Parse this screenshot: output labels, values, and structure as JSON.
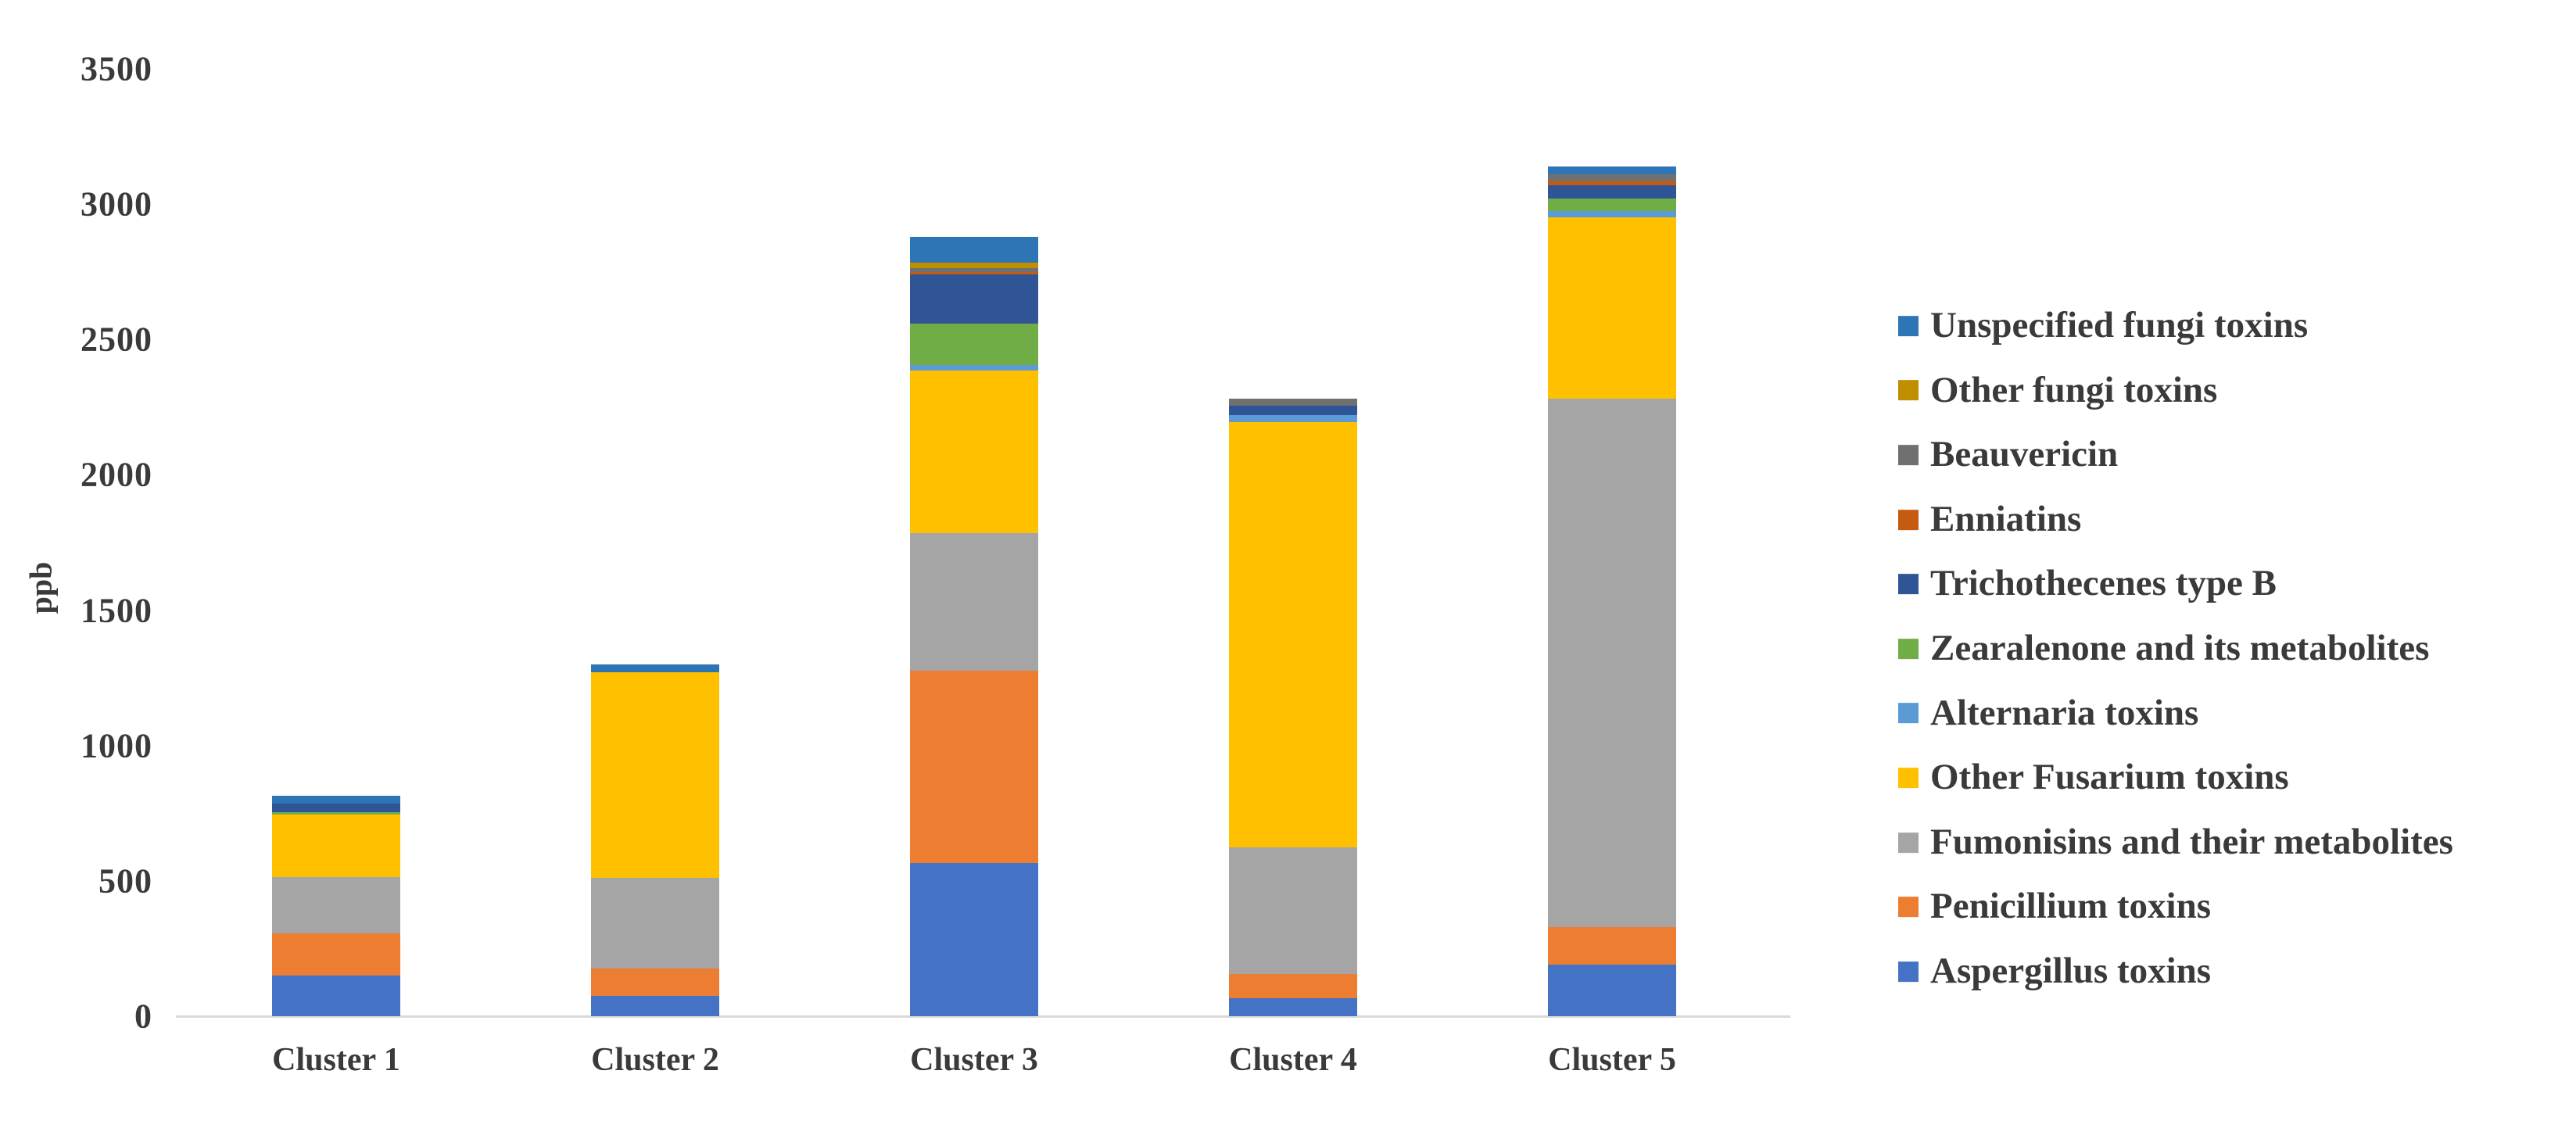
{
  "chart_data": {
    "type": "bar",
    "stacked": true,
    "title": "",
    "xlabel": "",
    "ylabel": "ppb",
    "ylim": [
      0,
      3500
    ],
    "yticks": [
      0,
      500,
      1000,
      1500,
      2000,
      2500,
      3000,
      3500
    ],
    "grid": "off",
    "legend_position": "right",
    "categories": [
      "Cluster 1",
      "Cluster 2",
      "Cluster 3",
      "Cluster 4",
      "Cluster 5"
    ],
    "series": [
      {
        "name": "Aspergillus toxins",
        "color": "#4472C4",
        "values": [
          150,
          75,
          565,
          65,
          190
        ]
      },
      {
        "name": "Penicillium toxins",
        "color": "#ED7D31",
        "values": [
          155,
          100,
          710,
          90,
          140
        ]
      },
      {
        "name": "Fumonisins and their metabolites",
        "color": "#A5A5A5",
        "values": [
          210,
          335,
          510,
          470,
          1950
        ]
      },
      {
        "name": "Other Fusarium toxins",
        "color": "#FFC000",
        "values": [
          230,
          760,
          600,
          1570,
          670
        ]
      },
      {
        "name": "Alternaria toxins",
        "color": "#5B9BD5",
        "values": [
          0,
          0,
          20,
          25,
          25
        ]
      },
      {
        "name": "Zearalenone and its metabolites",
        "color": "#70AD47",
        "values": [
          10,
          0,
          155,
          0,
          45
        ]
      },
      {
        "name": "Trichothecenes type B",
        "color": "#2F5597",
        "values": [
          30,
          0,
          180,
          35,
          50
        ]
      },
      {
        "name": "Enniatins",
        "color": "#C55A11",
        "values": [
          0,
          0,
          10,
          0,
          15
        ]
      },
      {
        "name": "Beauvericin",
        "color": "#707070",
        "values": [
          0,
          0,
          15,
          25,
          25
        ]
      },
      {
        "name": "Other fungi toxins",
        "color": "#BF8F00",
        "values": [
          0,
          0,
          20,
          0,
          0
        ]
      },
      {
        "name": "Unspecified fungi toxins",
        "color": "#2E75B6",
        "values": [
          30,
          30,
          95,
          0,
          30
        ]
      }
    ],
    "stack_totals": [
      815,
      1300,
      2880,
      2280,
      3140
    ],
    "legend_order_top_to_bottom": [
      "Unspecified fungi toxins",
      "Other fungi toxins",
      "Beauvericin",
      "Enniatins",
      "Trichothecenes type B",
      "Zearalenone and its metabolites",
      "Alternaria toxins",
      "Other Fusarium toxins",
      "Fumonisins and their metabolites",
      "Penicillium toxins",
      "Aspergillus toxins"
    ]
  },
  "colors": {
    "text": "#3A3A3A",
    "axis_line": "#D9D9D9",
    "background": "#FFFFFF"
  }
}
